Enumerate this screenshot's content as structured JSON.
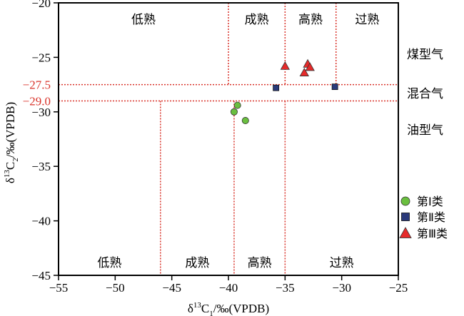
{
  "chart_data": {
    "type": "scatter",
    "title": "",
    "xlabel": {
      "pre": "δ",
      "sup": "13",
      "mid": "C",
      "sub": "1",
      "post": "/‰(VPDB)"
    },
    "ylabel": {
      "pre": "δ",
      "sup": "13",
      "mid": "C",
      "sub": "2",
      "post": "/‰(VPDB)"
    },
    "xlim": [
      -55,
      -25
    ],
    "ylim": [
      -45,
      -20
    ],
    "xticks": [
      -55,
      -50,
      -45,
      -40,
      -35,
      -30,
      -25
    ],
    "yticks": [
      -45,
      -40,
      -35,
      -30,
      -25,
      -20
    ],
    "grid": false,
    "legend_position": "right-bottom",
    "series": [
      {
        "name": "第Ⅰ类",
        "marker": "circle",
        "color": "#6abf3f",
        "points": [
          [
            -39.2,
            -29.4
          ],
          [
            -39.5,
            -30.0
          ],
          [
            -38.5,
            -30.8
          ]
        ]
      },
      {
        "name": "第Ⅱ类",
        "marker": "square",
        "color": "#2b3a7a",
        "points": [
          [
            -35.8,
            -27.8
          ],
          [
            -30.6,
            -27.7
          ]
        ]
      },
      {
        "name": "第Ⅲ类",
        "marker": "triangle",
        "color": "#e62a2a",
        "points": [
          [
            -35.0,
            -25.8
          ],
          [
            -33.0,
            -25.6
          ],
          [
            -32.8,
            -25.9
          ],
          [
            -33.3,
            -26.4
          ]
        ]
      }
    ],
    "thresholds": {
      "color": "#d9342b",
      "y_labels": [
        {
          "y": -27.5,
          "label": "−27.5"
        },
        {
          "y": -29.0,
          "label": "−29.0"
        }
      ],
      "upper_x_lines": [
        -40,
        -35,
        -30.5
      ],
      "lower_x_lines": [
        -46,
        -39.5,
        -35
      ]
    },
    "zone_labels_top": [
      "低熟",
      "成熟",
      "高熟",
      "过熟"
    ],
    "zone_labels_bottom": [
      "低熟",
      "成熟",
      "高熟",
      "过熟"
    ],
    "gas_type_labels": [
      "煤型气",
      "混合气",
      "油型气"
    ]
  }
}
